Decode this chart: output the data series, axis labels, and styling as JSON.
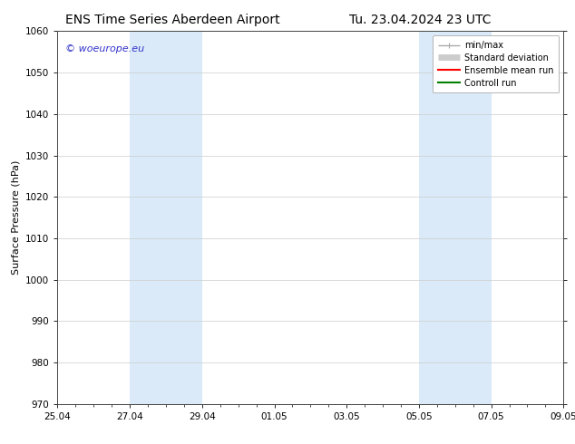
{
  "title_left": "ENS Time Series Aberdeen Airport",
  "title_right": "Tu. 23.04.2024 23 UTC",
  "ylabel": "Surface Pressure (hPa)",
  "ylim": [
    970,
    1060
  ],
  "yticks": [
    970,
    980,
    990,
    1000,
    1010,
    1020,
    1030,
    1040,
    1050,
    1060
  ],
  "xtick_labels": [
    "25.04",
    "27.04",
    "29.04",
    "01.05",
    "03.05",
    "05.05",
    "07.05",
    "09.05"
  ],
  "xtick_positions": [
    0,
    2,
    4,
    6,
    8,
    10,
    12,
    14
  ],
  "shaded_bands": [
    {
      "x_start": 2,
      "x_end": 4
    },
    {
      "x_start": 10,
      "x_end": 12
    }
  ],
  "shaded_color": "#daeaf8",
  "background_color": "#ffffff",
  "grid_color": "#cccccc",
  "copyright_text": "© woeurope.eu",
  "copyright_color": "#3333cc",
  "legend_items": [
    {
      "label": "min/max",
      "color": "#aaaaaa",
      "lw": 1.0
    },
    {
      "label": "Standard deviation",
      "color": "#cccccc",
      "lw": 5
    },
    {
      "label": "Ensemble mean run",
      "color": "#ff0000",
      "lw": 1.5
    },
    {
      "label": "Controll run",
      "color": "#008000",
      "lw": 1.5
    }
  ],
  "x_start": 0,
  "x_end": 14,
  "title_fontsize": 10,
  "label_fontsize": 8,
  "tick_fontsize": 7.5,
  "legend_fontsize": 7,
  "copyright_fontsize": 8
}
